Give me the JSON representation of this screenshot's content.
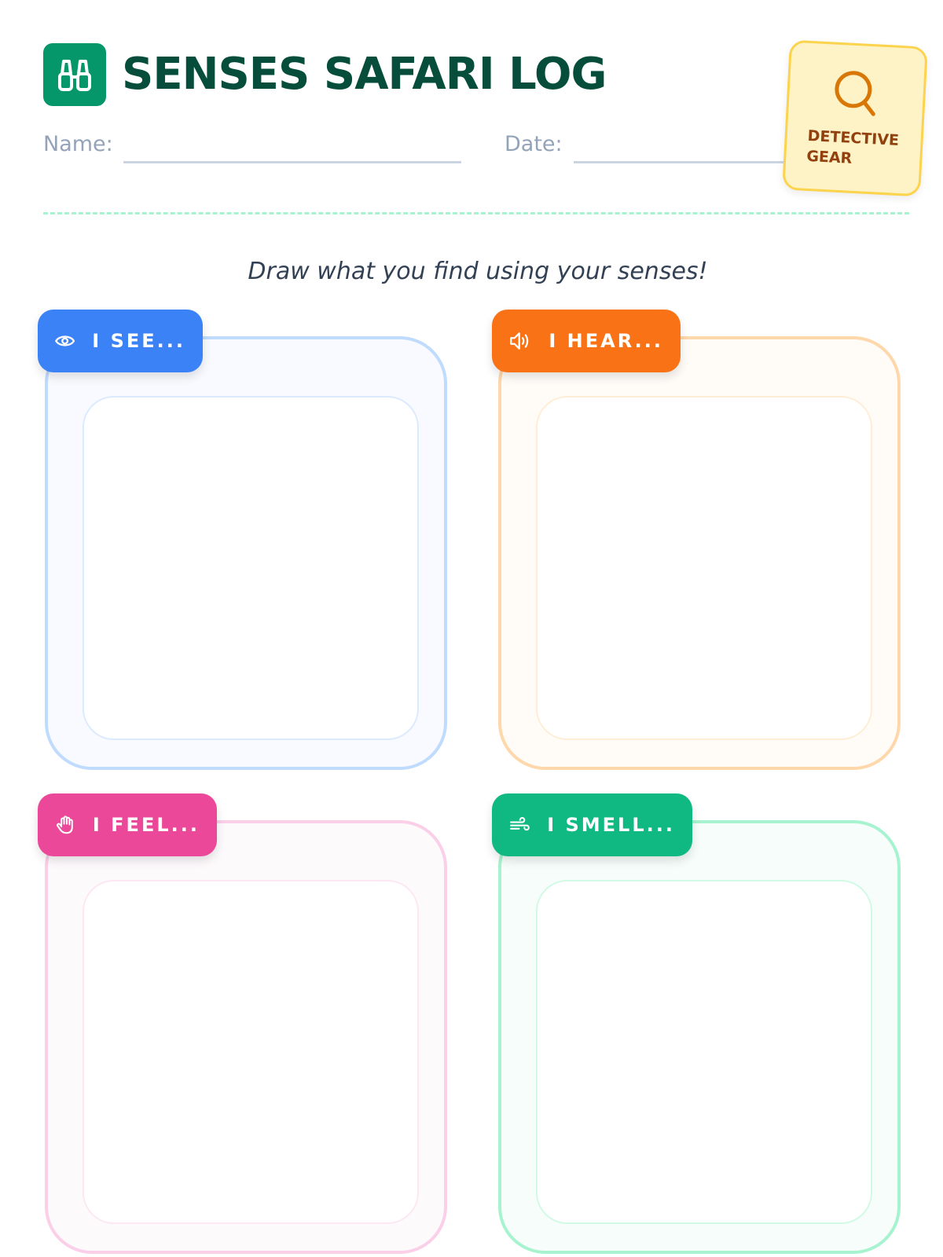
{
  "header": {
    "title": "SENSES SAFARI LOG",
    "name_label": "Name:",
    "date_label": "Date:",
    "logo_icon": "binoculars-icon"
  },
  "badge": {
    "line1": "DETECTIVE",
    "line2": "GEAR",
    "icon": "magnifying-glass-icon"
  },
  "instructions": "Draw what you find using your senses!",
  "panels": [
    {
      "label": "I SEE...",
      "icon": "eye-icon",
      "color": "#3b82f6"
    },
    {
      "label": "I HEAR...",
      "icon": "speaker-icon",
      "color": "#f97316"
    },
    {
      "label": "I FEEL...",
      "icon": "hand-icon",
      "color": "#ec4899"
    },
    {
      "label": "I SMELL...",
      "icon": "wind-icon",
      "color": "#10b981"
    }
  ]
}
